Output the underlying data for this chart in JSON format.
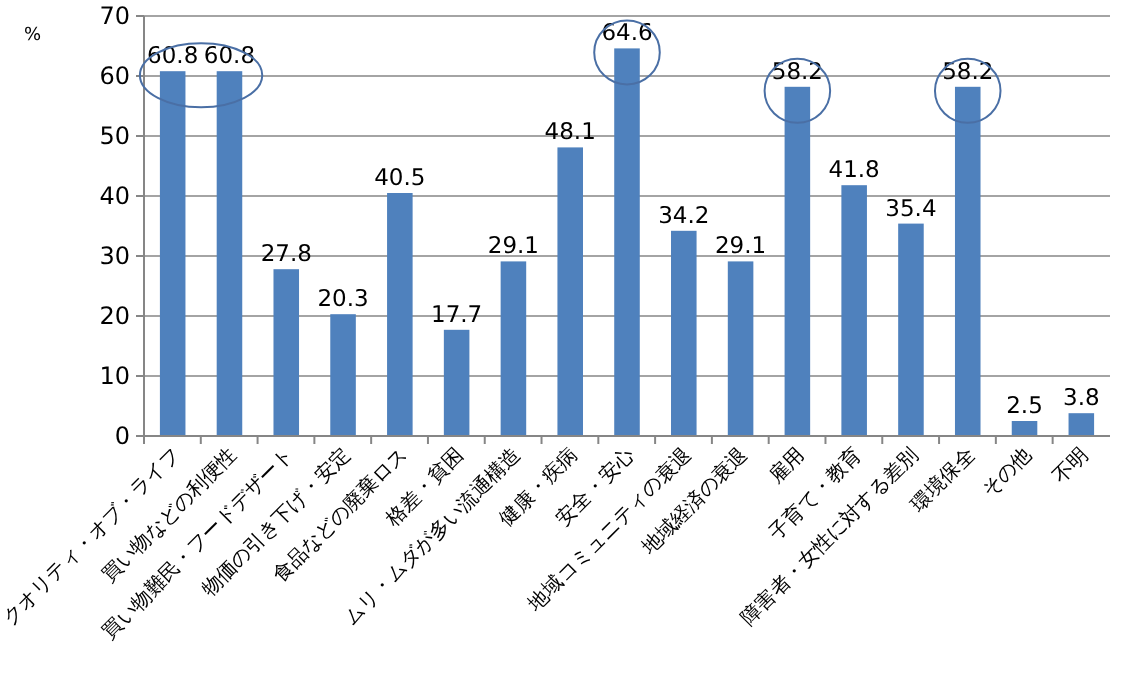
{
  "chart_data": {
    "type": "bar",
    "ylabel": "%",
    "categories": [
      "クオリティ・オブ・ライフ",
      "買い物などの利便性",
      "買い物難民・フードデザート",
      "物価の引き下げ・安定",
      "食品などの廃棄ロス",
      "格差・貧困",
      "ムリ・ムダが多い流通構造",
      "健康・疾病",
      "安全・安心",
      "地域コミュニティの衰退",
      "地域経済の衰退",
      "雇用",
      "子育て・教育",
      "障害者・女性に対する差別",
      "環境保全",
      "その他",
      "不明"
    ],
    "values": [
      60.8,
      60.8,
      27.8,
      20.3,
      40.5,
      17.7,
      29.1,
      48.1,
      64.6,
      34.2,
      29.1,
      58.2,
      41.8,
      35.4,
      58.2,
      2.5,
      3.8
    ],
    "color": "#4f81bd",
    "ylim": [
      0,
      70
    ],
    "yticks": [
      0,
      10,
      20,
      30,
      40,
      50,
      60,
      70
    ],
    "grid": "y",
    "data_labels": true
  }
}
